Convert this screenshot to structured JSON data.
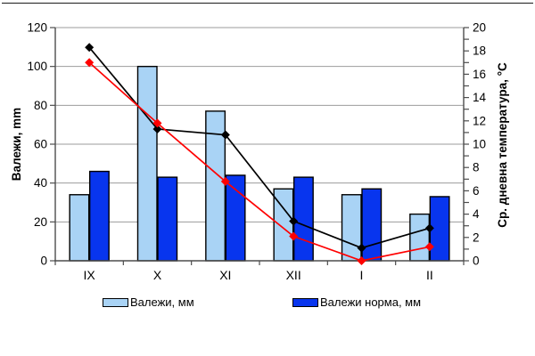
{
  "chart_data": {
    "type": "combo-bar-line",
    "categories": [
      "IX",
      "X",
      "XI",
      "XII",
      "I",
      "II"
    ],
    "bar_series": [
      {
        "legend": "Валежи, мм",
        "color": "#A9D3F5",
        "border": "#000000",
        "values": [
          34,
          100,
          77,
          37,
          34,
          24
        ]
      },
      {
        "legend": "Валежи норма, мм",
        "color": "#0835EE",
        "border": "#000000",
        "values": [
          46,
          43,
          44,
          43,
          37,
          33
        ]
      }
    ],
    "line_series": [
      {
        "color": "#000000",
        "marker": "diamond",
        "axis": "right",
        "values": [
          18.3,
          11.3,
          10.8,
          3.4,
          1.1,
          2.8
        ]
      },
      {
        "color": "#FF0000",
        "marker": "diamond",
        "axis": "right",
        "values": [
          17.0,
          11.8,
          6.8,
          2.1,
          0.0,
          1.2
        ]
      }
    ],
    "left_axis": {
      "title": "Валежи, mm",
      "min": 0,
      "max": 120,
      "label_step": 20
    },
    "right_axis": {
      "title": "Ср. дневна температура, °C",
      "min": 0,
      "max": 20,
      "label_step": 2,
      "minor_tick_step": 1
    },
    "legend": [
      "Валежи, мм",
      "Валежи норма, мм"
    ],
    "legend_position": "bottom",
    "grid": "horizontal",
    "gridline_color": "#9b9b9b",
    "axis_color": "#4d4d4d",
    "background": "#FFFFFF"
  }
}
